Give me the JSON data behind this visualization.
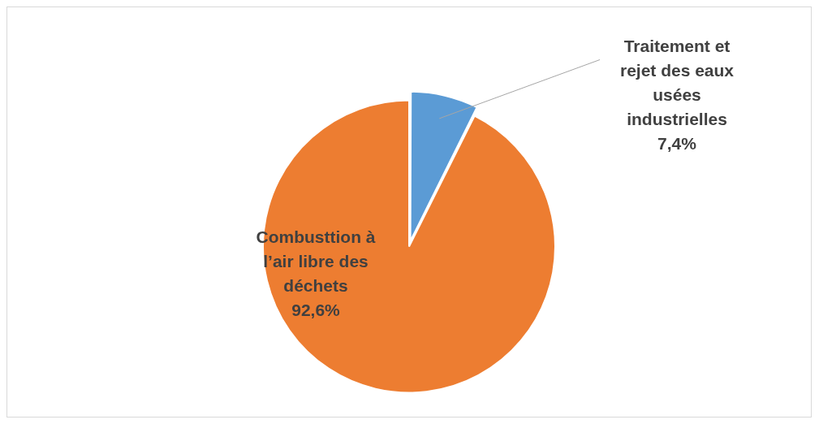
{
  "chart_data": {
    "type": "pie",
    "categories": [
      "Traitement et rejet des eaux usées industrielles",
      "Combusttion à l’air libre des déchets"
    ],
    "values": [
      7.4,
      92.6
    ],
    "colors": [
      "#5b9bd5",
      "#ed7d31"
    ],
    "value_labels": [
      "7,4%",
      "92,6%"
    ],
    "legend": false
  }
}
